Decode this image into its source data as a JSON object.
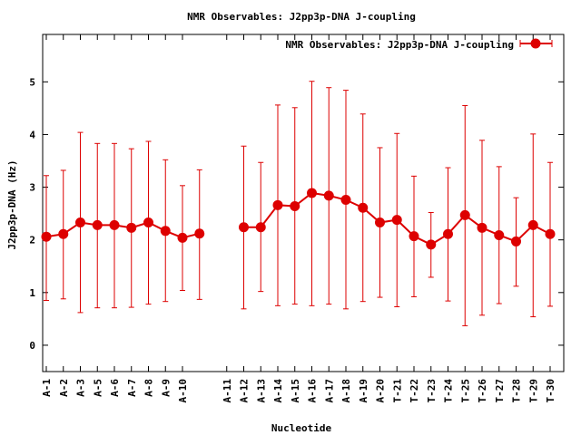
{
  "chart_data": {
    "type": "line",
    "title": "NMR Observables: J2pp3p-DNA J-coupling",
    "xlabel": "Nucleotide",
    "ylabel": "J2pp3p-DNA (Hz)",
    "ylim": [
      -0.5,
      5.9
    ],
    "yticks": [
      0,
      1,
      2,
      3,
      4,
      5
    ],
    "legend_position": "top-right",
    "series_color": "#dd0000",
    "categories": [
      "A-1",
      "A-2",
      "A-3",
      "A-5",
      "A-6",
      "A-7",
      "A-8",
      "A-9",
      "A-10",
      "A-11",
      "A-12",
      "A-13",
      "A-14",
      "A-15",
      "A-16",
      "A-17",
      "A-18",
      "A-19",
      "A-20",
      "T-21",
      "T-22",
      "T-23",
      "T-24",
      "T-25",
      "T-26",
      "T-27",
      "T-28",
      "T-29",
      "T-30"
    ],
    "series": [
      {
        "name": "NMR Observables: J2pp3p-DNA J-coupling",
        "segments": [
          {
            "points": [
              {
                "x": "A-1",
                "y": 2.06,
                "lo": 0.85,
                "hi": 3.22
              },
              {
                "x": "A-2",
                "y": 2.11,
                "lo": 0.88,
                "hi": 3.32
              },
              {
                "x": "A-3",
                "y": 2.33,
                "lo": 0.62,
                "hi": 4.04
              },
              {
                "x": "A-5",
                "y": 2.28,
                "lo": 0.71,
                "hi": 3.83
              },
              {
                "x": "A-6",
                "y": 2.28,
                "lo": 0.71,
                "hi": 3.83
              },
              {
                "x": "A-7",
                "y": 2.23,
                "lo": 0.72,
                "hi": 3.73
              },
              {
                "x": "A-8",
                "y": 2.33,
                "lo": 0.78,
                "hi": 3.87
              },
              {
                "x": "A-9",
                "y": 2.17,
                "lo": 0.83,
                "hi": 3.52
              },
              {
                "x": "A-10",
                "y": 2.04,
                "lo": 1.04,
                "hi": 3.03
              },
              {
                "x": "A-11",
                "y": 2.12,
                "lo": 0.87,
                "hi": 3.33
              }
            ]
          },
          {
            "points": [
              {
                "x": "A-12",
                "y": 2.24,
                "lo": 0.69,
                "hi": 3.78
              },
              {
                "x": "A-13",
                "y": 2.24,
                "lo": 1.02,
                "hi": 3.47
              },
              {
                "x": "A-14",
                "y": 2.66,
                "lo": 0.75,
                "hi": 4.56
              },
              {
                "x": "A-15",
                "y": 2.64,
                "lo": 0.78,
                "hi": 4.51
              },
              {
                "x": "A-16",
                "y": 2.89,
                "lo": 0.75,
                "hi": 5.01
              },
              {
                "x": "A-17",
                "y": 2.84,
                "lo": 0.78,
                "hi": 4.89
              },
              {
                "x": "A-18",
                "y": 2.76,
                "lo": 0.69,
                "hi": 4.84
              },
              {
                "x": "A-19",
                "y": 2.61,
                "lo": 0.83,
                "hi": 4.39
              },
              {
                "x": "A-20",
                "y": 2.33,
                "lo": 0.91,
                "hi": 3.75
              },
              {
                "x": "T-21",
                "y": 2.38,
                "lo": 0.73,
                "hi": 4.02
              },
              {
                "x": "T-22",
                "y": 2.07,
                "lo": 0.92,
                "hi": 3.21
              },
              {
                "x": "T-23",
                "y": 1.91,
                "lo": 1.29,
                "hi": 2.52
              },
              {
                "x": "T-24",
                "y": 2.11,
                "lo": 0.84,
                "hi": 3.37
              },
              {
                "x": "T-25",
                "y": 2.47,
                "lo": 0.37,
                "hi": 4.55
              },
              {
                "x": "T-26",
                "y": 2.23,
                "lo": 0.57,
                "hi": 3.89
              },
              {
                "x": "T-27",
                "y": 2.09,
                "lo": 0.79,
                "hi": 3.39
              },
              {
                "x": "T-28",
                "y": 1.97,
                "lo": 1.12,
                "hi": 2.8
              },
              {
                "x": "T-29",
                "y": 2.28,
                "lo": 0.54,
                "hi": 4.01
              },
              {
                "x": "T-30",
                "y": 2.11,
                "lo": 0.74,
                "hi": 3.47
              }
            ]
          }
        ]
      }
    ]
  }
}
